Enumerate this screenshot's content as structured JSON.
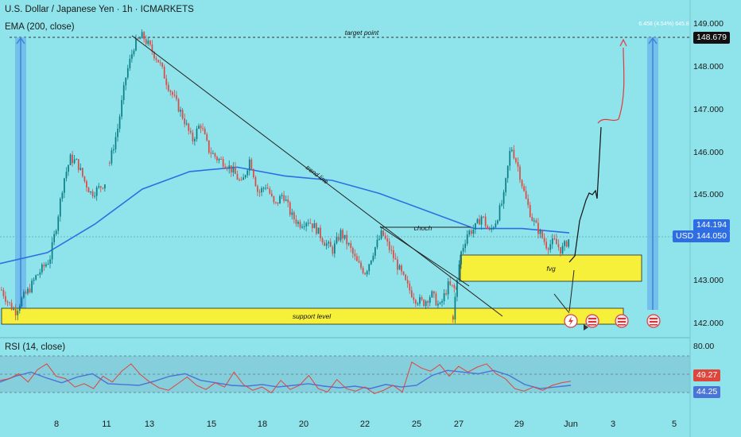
{
  "header": {
    "title": "U.S. Dollar / Japanese Yen · 1h · ICMARKETS",
    "ema_label": "EMA (200, close)",
    "rsi_label": "RSI (14, close)"
  },
  "chart_data": {
    "type": "candlestick",
    "symbol": "USDJPY",
    "timeframe": "1h",
    "price_axis": {
      "ticks": [
        "149.000",
        "148.000",
        "147.000",
        "146.000",
        "145.000",
        "143.000",
        "142.000"
      ],
      "ylim": [
        141.97,
        149.3
      ]
    },
    "x_ticks": [
      "8",
      "11",
      "13",
      "15",
      "18",
      "20",
      "22",
      "25",
      "27",
      "29",
      "Jun",
      "3",
      "5"
    ],
    "price_path": [
      [
        142.9,
        142.6,
        142.4,
        142.7,
        142.9,
        143.2,
        143.4,
        143.6,
        144.4,
        145.4,
        145.9,
        145.8,
        145.4,
        145.1,
        145.2,
        145.35
      ],
      [
        145.8,
        146.6,
        147.8,
        148.5,
        148.7,
        148.4,
        148.1,
        147.6,
        147.2,
        146.8,
        146.3,
        146.7,
        146.1,
        145.9,
        145.8,
        145.6,
        145.3,
        145.9,
        145.1,
        145.3,
        144.8,
        145.1,
        144.6,
        144.4,
        144.5,
        144.3,
        144.0,
        143.8,
        144.2,
        143.9,
        143.5,
        143.3,
        143.8,
        144.2,
        143.8,
        143.4,
        143.0,
        142.7,
        142.6,
        142.8,
        142.5,
        143.0,
        142.9
      ],
      [
        142.3,
        143.7,
        144.2,
        144.3,
        144.6,
        144.2,
        144.5,
        145.0,
        146.2,
        145.7,
        145.0,
        144.5,
        144.2,
        143.9,
        144.0,
        143.8,
        144.05
      ]
    ],
    "ema_200_path": [
      143.5,
      143.75,
      144.4,
      145.2,
      145.6,
      145.7,
      145.5,
      145.4,
      145.1,
      144.7,
      144.3,
      144.3,
      144.2
    ],
    "current_price": 144.05,
    "ema_value": 144.194,
    "target_price": 148.679,
    "projection_tag": "6.458 (4.54%) 645.8",
    "labels": {
      "symbol_badge": "USDJPY",
      "target_point": "target point",
      "support_level": "support level",
      "trend_line": "trend line",
      "choch": "choch",
      "fvg": "fvg"
    },
    "rsi": {
      "ticks": [
        "80.00"
      ],
      "ylim": [
        20,
        90
      ],
      "value": 49.27,
      "signal": 44.25,
      "path": [
        50,
        52,
        58,
        48,
        63,
        70,
        55,
        52,
        42,
        46,
        40,
        55,
        48,
        61,
        70,
        57,
        48,
        41,
        38,
        46,
        54,
        44,
        39,
        47,
        42,
        60,
        45,
        38,
        42,
        35,
        50,
        39,
        44,
        56,
        40,
        36,
        51,
        40,
        37,
        42,
        34,
        38,
        44,
        36,
        72,
        65,
        61,
        69,
        55,
        67,
        60,
        66,
        70,
        58,
        52,
        40,
        37,
        42,
        38,
        44,
        47,
        49
      ],
      "signal_path": [
        48,
        55,
        60,
        53,
        47,
        54,
        58,
        46,
        45,
        44,
        49,
        55,
        58,
        50,
        47,
        44,
        43,
        45,
        42,
        44,
        46,
        43,
        41,
        43,
        40,
        45,
        42,
        44,
        56,
        62,
        60,
        58,
        62,
        56,
        45,
        40,
        42,
        44
      ]
    },
    "colors": {
      "background": "#8fe3ea",
      "up": "#0b7d87",
      "down": "#d94b44",
      "ema": "#2f6ee2",
      "zone": "#f7f03a",
      "rsi_band": "#7fbfd2",
      "rsi_signal": "#4a74d6",
      "rsi_line": "#e0453c"
    }
  }
}
